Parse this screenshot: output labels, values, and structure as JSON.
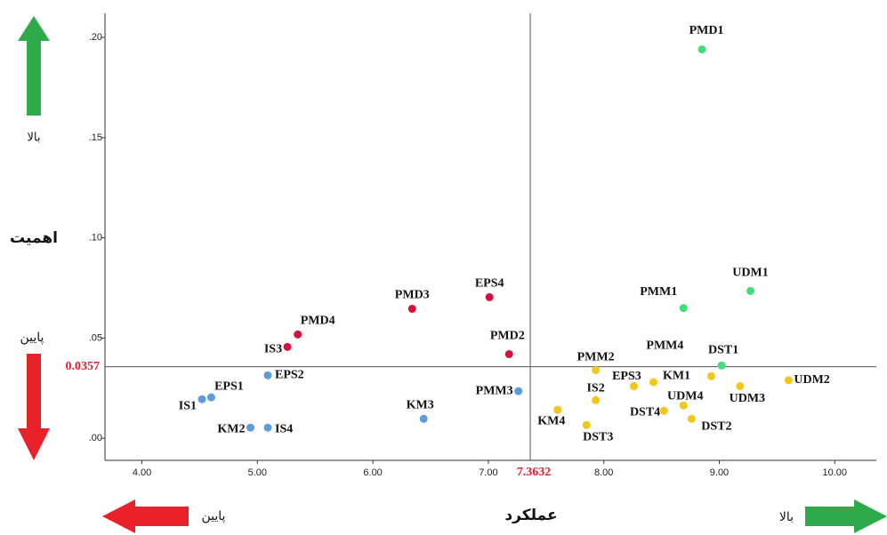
{
  "chart_data": {
    "type": "scatter",
    "y_label": "اهمیت",
    "x_label": "عملکرد",
    "y_high": "بالا",
    "y_low": "پایین",
    "x_low": "پایین",
    "x_high": "بالا",
    "ref_x": 7.3632,
    "ref_y": 0.0357,
    "ref_color": "#e02030",
    "xlim": [
      3.68,
      10.36
    ],
    "ylim": [
      -0.011,
      0.212
    ],
    "xticks": [
      {
        "value": 4,
        "label": "4.00"
      },
      {
        "value": 5,
        "label": "5.00"
      },
      {
        "value": 6,
        "label": "6.00"
      },
      {
        "value": 7,
        "label": "7.00"
      },
      {
        "value": 8,
        "label": "8.00"
      },
      {
        "value": 9,
        "label": "9.00"
      },
      {
        "value": 10,
        "label": "10.00"
      }
    ],
    "yticks": [
      {
        "value": 0,
        "label": ".00"
      },
      {
        "value": 0.05,
        "label": ".05"
      },
      {
        "value": 0.1,
        "label": ".10"
      },
      {
        "value": 0.15,
        "label": ".15"
      },
      {
        "value": 0.2,
        "label": ".20"
      }
    ],
    "series": [
      {
        "color": "#3fe07a",
        "labels": [
          "PMD1",
          "UDM1",
          "PMM1",
          "DST1"
        ],
        "x": [
          8.85,
          9.27,
          8.69,
          9.02
        ],
        "y": [
          0.194,
          0.0735,
          0.065,
          0.0363
        ]
      },
      {
        "color": "#d4113c",
        "labels": [
          "PMD3",
          "EPS4",
          "PMD4",
          "IS3",
          "PMD2"
        ],
        "x": [
          6.34,
          7.01,
          5.35,
          5.26,
          7.18
        ],
        "y": [
          0.0646,
          0.0704,
          0.0518,
          0.0456,
          0.042
        ]
      },
      {
        "color": "#5b9be0",
        "labels": [
          "EPS2",
          "EPS1",
          "IS1",
          "KM2",
          "IS4",
          "KM3",
          "PMM3"
        ],
        "x": [
          5.09,
          4.6,
          4.52,
          4.94,
          5.09,
          6.44,
          7.26
        ],
        "y": [
          0.0314,
          0.0204,
          0.0195,
          0.0053,
          0.0053,
          0.0097,
          0.0235
        ]
      },
      {
        "color": "#f5c518",
        "labels": [
          "PMM2",
          "PMM4",
          "IS2",
          "EPS3",
          "KM1",
          "UDM3",
          "UDM2",
          "UDM4",
          "DST4",
          "DST2",
          "KM4",
          "DST3"
        ],
        "x": [
          7.93,
          8.93,
          7.93,
          8.26,
          8.43,
          9.18,
          9.6,
          8.69,
          8.52,
          8.76,
          7.6,
          7.85
        ],
        "y": [
          0.034,
          0.031,
          0.019,
          0.026,
          0.028,
          0.026,
          0.029,
          0.0164,
          0.0137,
          0.0097,
          0.0142,
          0.0066
        ]
      }
    ]
  }
}
